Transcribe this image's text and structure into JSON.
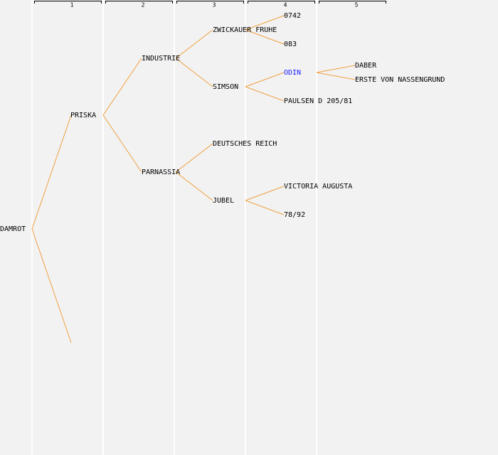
{
  "columns": [
    "1",
    "2",
    "3",
    "4",
    "5"
  ],
  "nodes": [
    "DAMROT",
    "PRISKA",
    "INDUSTRIE",
    "PARNASSIA",
    "ZWICKAUER FRUHE",
    "SIMSON",
    "DEUTSCHES REICH",
    "JUBEL",
    "0742",
    "083",
    "ODIN",
    "PAULSEN D 205/81",
    "VICTORIA AUGUSTA",
    "78/92",
    "DABER",
    "ERSTE VON NASSENGRUND"
  ]
}
